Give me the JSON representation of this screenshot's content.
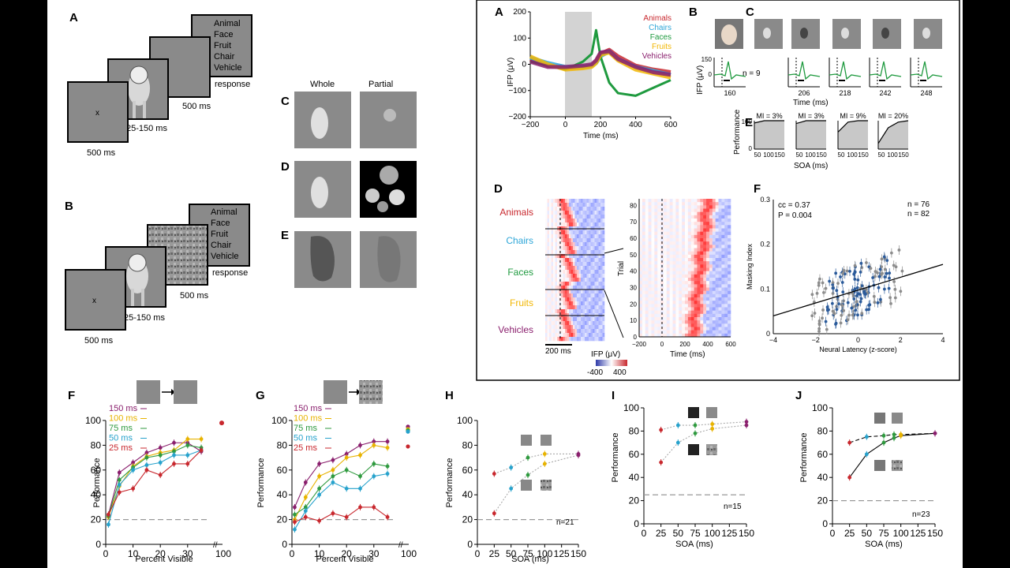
{
  "colors": {
    "animals": "#c8282e",
    "chairs": "#2ea6d8",
    "faces": "#1f9a3f",
    "fruits": "#f2b705",
    "vehicles": "#8a1f6d",
    "ms150": "#8a1f6d",
    "ms100": "#e8b300",
    "ms75": "#2f9a3f",
    "ms50": "#27a2cc",
    "ms25": "#c8282e",
    "gray_screen": "#8a8a8a",
    "blue_points": "#2a5a9a",
    "gray_points": "#8c8c8c"
  },
  "left": {
    "panel_a_label": "A",
    "panel_b_label": "B",
    "panel_c_label": "C",
    "panel_d_label": "D",
    "panel_e_label": "E",
    "fixation": "x",
    "choices": [
      "Animal",
      "Face",
      "Fruit",
      "Chair",
      "Vehicle"
    ],
    "response": "response",
    "t_fix": "500 ms",
    "t_stim": "25-150 ms",
    "t_mask": "500 ms",
    "col_whole": "Whole",
    "col_partial": "Partial"
  },
  "right": {
    "panel_a": {
      "label": "A",
      "ylabel": "IFP (μV)",
      "xlabel": "Time (ms)",
      "legend": [
        "Animals",
        "Chairs",
        "Faces",
        "Fruits",
        "Vehicles"
      ]
    },
    "panel_b": {
      "label": "B"
    },
    "panel_c": {
      "label": "C",
      "n_label": "n = 9",
      "ylabel": "IFP (μV)",
      "xlabel": "Time (ms)",
      "ticks": [
        "160",
        "206",
        "218",
        "242",
        "248"
      ]
    },
    "panel_e": {
      "label": "E",
      "mi": [
        "MI = 3%",
        "MI = 3%",
        "MI = 9%",
        "MI = 20%"
      ],
      "ylabel": "Performance",
      "xlabel": "SOA (ms)"
    },
    "panel_d": {
      "label": "D",
      "categories": [
        "Animals",
        "Chairs",
        "Faces",
        "Fruits",
        "Vehicles"
      ],
      "scale_label": "200 ms",
      "cbar_label": "IFP (μV)",
      "cbar_min": "-400",
      "cbar_max": "400",
      "ylabel": "Trial",
      "xlabel": "Time (ms)"
    },
    "panel_f": {
      "label": "F",
      "cc": "cc = 0.37",
      "p": "P = 0.004",
      "n_gray": "n = 76",
      "n_blue": "n = 82"
    }
  },
  "bottom": {
    "labels": {
      "F": "F",
      "G": "G",
      "H": "H",
      "I": "I",
      "J": "J"
    },
    "perf_label": "Performance",
    "pct_label": "Percent Visible",
    "soa_label": "SOA (ms)",
    "legend": [
      "150 ms",
      "100 ms",
      "75 ms",
      "50 ms",
      "25 ms"
    ],
    "n_h": "n=21",
    "n_i": "n=15",
    "n_j": "n=23"
  },
  "chart_data": [
    {
      "id": "top-A",
      "type": "line",
      "title": "",
      "xlabel": "Time (ms)",
      "ylabel": "IFP (μV)",
      "xlim": [
        -200,
        600
      ],
      "ylim": [
        -200,
        200
      ],
      "x": [
        -200,
        -100,
        0,
        100,
        150,
        175,
        200,
        250,
        300,
        400,
        500,
        600
      ],
      "series": [
        {
          "name": "Animals",
          "values": [
            20,
            -5,
            -15,
            -10,
            -5,
            10,
            40,
            55,
            30,
            -5,
            -20,
            -30
          ]
        },
        {
          "name": "Chairs",
          "values": [
            25,
            5,
            -10,
            -10,
            -5,
            5,
            30,
            50,
            20,
            -10,
            -25,
            -40
          ]
        },
        {
          "name": "Faces",
          "values": [
            10,
            -5,
            -20,
            10,
            40,
            130,
            30,
            -70,
            -110,
            -120,
            -90,
            -60
          ]
        },
        {
          "name": "Fruits",
          "values": [
            30,
            0,
            -20,
            -15,
            -10,
            5,
            35,
            45,
            15,
            -20,
            -35,
            -50
          ]
        },
        {
          "name": "Vehicles",
          "values": [
            10,
            -10,
            -10,
            -5,
            0,
            15,
            45,
            50,
            20,
            -10,
            -30,
            -40
          ]
        }
      ]
    },
    {
      "id": "top-F",
      "type": "scatter",
      "xlabel": "Neural Latency (z-score)",
      "ylabel": "Masking Index",
      "xlim": [
        -4,
        4
      ],
      "ylim": [
        0,
        0.3
      ],
      "fit_line": [
        [
          -4,
          0.04
        ],
        [
          4,
          0.155
        ]
      ]
    },
    {
      "id": "F",
      "type": "line",
      "xlabel": "Percent Visible",
      "ylabel": "Performance",
      "ylim": [
        0,
        100
      ],
      "x": [
        1,
        5,
        10,
        15,
        20,
        25,
        30,
        35
      ],
      "series": [
        {
          "name": "150 ms",
          "values": [
            24,
            58,
            66,
            74,
            78,
            82,
            82,
            75
          ]
        },
        {
          "name": "100 ms",
          "values": [
            22,
            47,
            63,
            71,
            74,
            76,
            85,
            85
          ]
        },
        {
          "name": "75 ms",
          "values": [
            23,
            52,
            62,
            70,
            72,
            75,
            80,
            78
          ]
        },
        {
          "name": "50 ms",
          "values": [
            16,
            48,
            60,
            64,
            66,
            72,
            72,
            76
          ]
        },
        {
          "name": "25 ms",
          "values": [
            24,
            42,
            45,
            60,
            56,
            65,
            65,
            76
          ]
        }
      ],
      "at_100": 98
    },
    {
      "id": "G",
      "type": "line",
      "xlabel": "Percent Visible",
      "ylabel": "Performance",
      "ylim": [
        0,
        100
      ],
      "x": [
        1,
        5,
        10,
        15,
        20,
        25,
        30,
        35
      ],
      "series": [
        {
          "name": "150 ms",
          "values": [
            30,
            50,
            65,
            68,
            73,
            80,
            83,
            83
          ]
        },
        {
          "name": "100 ms",
          "values": [
            20,
            38,
            55,
            60,
            70,
            72,
            80,
            78
          ]
        },
        {
          "name": "75 ms",
          "values": [
            24,
            30,
            45,
            55,
            60,
            55,
            65,
            63
          ]
        },
        {
          "name": "50 ms",
          "values": [
            12,
            27,
            40,
            50,
            45,
            45,
            55,
            57
          ]
        },
        {
          "name": "25 ms",
          "values": [
            18,
            22,
            19,
            25,
            22,
            30,
            30,
            22
          ]
        }
      ],
      "at_100": [
        95,
        93,
        92,
        91,
        79
      ]
    },
    {
      "id": "H",
      "type": "line",
      "xlabel": "SOA (ms)",
      "ylabel": "Performance",
      "ylim": [
        0,
        100
      ],
      "xlim": [
        0,
        150
      ],
      "x": [
        25,
        50,
        75,
        100,
        150
      ],
      "series": [
        {
          "name": "unmasked",
          "values": [
            57,
            62,
            70,
            73,
            73
          ]
        },
        {
          "name": "masked",
          "values": [
            25,
            45,
            56,
            65,
            72
          ]
        }
      ]
    },
    {
      "id": "I",
      "type": "line",
      "xlabel": "SOA (ms)",
      "ylabel": "Performance",
      "ylim": [
        0,
        100
      ],
      "xlim": [
        0,
        150
      ],
      "x": [
        25,
        50,
        75,
        100,
        150
      ],
      "series": [
        {
          "name": "unmasked",
          "values": [
            81,
            85,
            85,
            86,
            88
          ]
        },
        {
          "name": "masked",
          "values": [
            53,
            70,
            78,
            82,
            85
          ]
        }
      ]
    },
    {
      "id": "J",
      "type": "line",
      "xlabel": "SOA (ms)",
      "ylabel": "Performance",
      "ylim": [
        0,
        100
      ],
      "xlim": [
        0,
        150
      ],
      "x": [
        25,
        50,
        75,
        90,
        100,
        150
      ],
      "series": [
        {
          "name": "unmasked",
          "values": [
            70,
            75,
            76,
            77,
            77,
            78
          ]
        },
        {
          "name": "masked",
          "values": [
            40,
            60,
            70,
            74,
            76,
            78
          ]
        }
      ]
    }
  ]
}
